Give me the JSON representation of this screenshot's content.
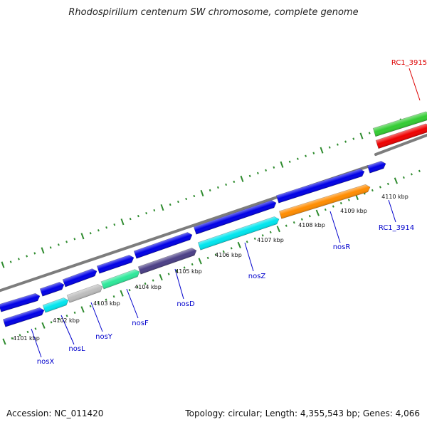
{
  "title": "Rhodospirillum centenum SW chromosome, complete genome",
  "footer": {
    "accession": "Accession: NC_011420",
    "stats": "Topology: circular; Length: 4,355,543 bp; Genes: 4,066"
  },
  "colors": {
    "blue": "#0000e6",
    "cyan": "#00e5ee",
    "silver": "#bdbdbd",
    "green_teal": "#2ee89a",
    "dark_slate": "#4b3f86",
    "orange": "#ff8c00",
    "green": "#33cc33",
    "red": "#ee0000",
    "backbone": "#7d7d7d",
    "tick": "#2e8b2e",
    "label_blue": "#0000cc",
    "label_red": "#dd0000"
  },
  "scale_labels": [
    "4101 kbp",
    "4102 kbp",
    "4103 kbp",
    "4104 kbp",
    "4105 kbp",
    "4106 kbp",
    "4107 kbp",
    "4108 kbp",
    "4109 kbp",
    "4110 kbp"
  ],
  "genes": {
    "outer_strand": [
      {
        "label": "",
        "color": "blue"
      },
      {
        "label": "",
        "color": "blue"
      },
      {
        "label": "",
        "color": "blue"
      },
      {
        "label": "",
        "color": "blue"
      },
      {
        "label": "",
        "color": "blue"
      },
      {
        "label": "",
        "color": "blue"
      },
      {
        "label": "",
        "color": "blue"
      },
      {
        "label": "",
        "color": "blue"
      },
      {
        "label": "",
        "color": "blue"
      },
      {
        "label": "",
        "color": "blue"
      },
      {
        "label": "RC1_3915",
        "color": "green"
      },
      {
        "label": "",
        "color": "red"
      }
    ],
    "inner_strand": [
      {
        "label": "nosX",
        "color": "blue"
      },
      {
        "label": "nosL",
        "color": "cyan"
      },
      {
        "label": "nosY",
        "color": "silver"
      },
      {
        "label": "nosF",
        "color": "green_teal"
      },
      {
        "label": "nosD",
        "color": "dark_slate"
      },
      {
        "label": "nosZ",
        "color": "cyan"
      },
      {
        "label": "nosR",
        "color": "orange"
      },
      {
        "label": "RC1_3914",
        "color": ""
      }
    ]
  }
}
